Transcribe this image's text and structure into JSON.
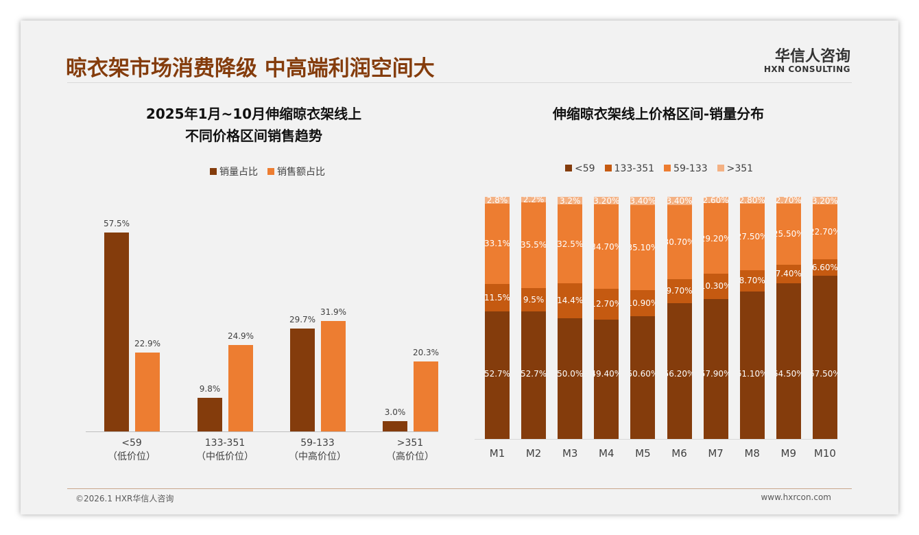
{
  "header": {
    "title": "晾衣架市场消费降级 中高端利润空间大",
    "logo_cn": "华信人咨询",
    "logo_en": "HXN CONSULTING"
  },
  "footer": {
    "copyright": "©2026.1 HXR华信人咨询",
    "url": "www.hxrcon.com"
  },
  "colors": {
    "brown": "#843C0C",
    "dark_orange": "#C55A11",
    "orange": "#ED7D31",
    "light": "#F4B183"
  },
  "chart_data": [
    {
      "type": "bar",
      "title": "2025年1月~10月伸缩晾衣架线上\n不同价格区间销售趋势",
      "title_lines": [
        "2025年1月~10月伸缩晾衣架线上",
        "不同价格区间销售趋势"
      ],
      "categories": [
        "<59",
        "133-351",
        "59-133",
        ">351"
      ],
      "category_sub": [
        "（低价位）",
        "（中低价位）",
        "（中高价位）",
        "（高价位）"
      ],
      "series": [
        {
          "name": "销量占比",
          "values": [
            57.5,
            9.8,
            29.7,
            3.0
          ],
          "labels": [
            "57.5%",
            "9.8%",
            "29.7%",
            "3.0%"
          ]
        },
        {
          "name": "销售额占比",
          "values": [
            22.9,
            24.9,
            31.9,
            20.3
          ],
          "labels": [
            "22.9%",
            "24.9%",
            "31.9%",
            "20.3%"
          ]
        }
      ],
      "ylim": [
        0,
        60
      ],
      "legend": "top"
    },
    {
      "type": "bar",
      "stacked": true,
      "title": "伸缩晾衣架线上价格区间-销量分布",
      "categories": [
        "M1",
        "M2",
        "M3",
        "M4",
        "M5",
        "M6",
        "M7",
        "M8",
        "M9",
        "M10"
      ],
      "series": [
        {
          "name": "<59",
          "values": [
            52.7,
            52.7,
            50.0,
            49.4,
            50.6,
            56.2,
            57.9,
            61.1,
            64.5,
            67.5
          ],
          "labels": [
            "52.7%",
            "52.7%",
            "50.0%",
            "49.40%",
            "50.60%",
            "56.20%",
            "57.90%",
            "61.10%",
            "64.50%",
            "67.50%"
          ]
        },
        {
          "name": "133-351",
          "values": [
            11.5,
            9.5,
            14.4,
            12.7,
            10.9,
            9.7,
            10.3,
            8.7,
            7.4,
            6.6
          ],
          "labels": [
            "11.5%",
            "9.5%",
            "14.4%",
            "12.70%",
            "10.90%",
            "9.70%",
            "10.30%",
            "8.70%",
            "7.40%",
            "6.60%"
          ]
        },
        {
          "name": "59-133",
          "values": [
            33.1,
            35.5,
            32.5,
            34.7,
            35.1,
            30.7,
            29.2,
            27.5,
            25.5,
            22.7
          ],
          "labels": [
            "33.1%",
            "35.5%",
            "32.5%",
            "34.70%",
            "35.10%",
            "30.70%",
            "29.20%",
            "27.50%",
            "25.50%",
            "22.70%"
          ]
        },
        {
          "name": ">351",
          "values": [
            2.8,
            2.2,
            3.2,
            3.2,
            3.4,
            3.4,
            2.6,
            2.8,
            2.7,
            3.2
          ],
          "labels": [
            "2.8%",
            "2.2%",
            "3.2%",
            "3.20%",
            "3.40%",
            "3.40%",
            "2.60%",
            "2.80%",
            "2.70%",
            "3.20%"
          ]
        }
      ],
      "ylim": [
        0,
        100
      ],
      "legend": "top"
    }
  ]
}
